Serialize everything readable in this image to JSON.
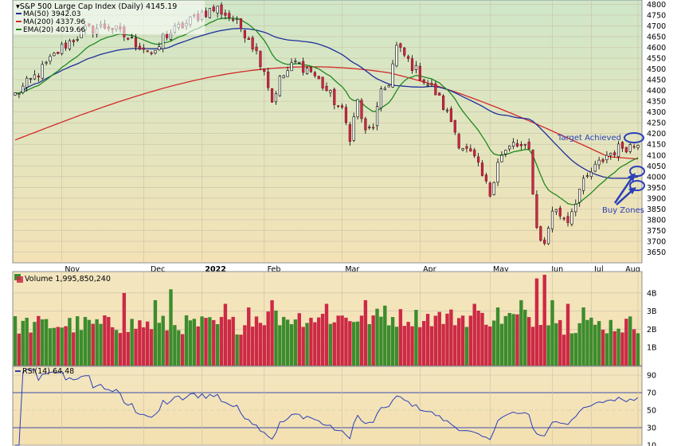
{
  "chart_data": {
    "type": "candlestick",
    "title": "S&P 500 Large Cap Index (Daily)",
    "last_value": "4145.19",
    "ylim": [
      3600,
      4820
    ],
    "y_ticks": [
      3650,
      3700,
      3750,
      3800,
      3850,
      3900,
      3950,
      4000,
      4050,
      4100,
      4150,
      4200,
      4250,
      4300,
      4350,
      4400,
      4450,
      4500,
      4550,
      4600,
      4650,
      4700,
      4750,
      4800
    ],
    "x_labels": [
      "Nov",
      "Dec",
      "2022",
      "Feb",
      "Mar",
      "Apr",
      "May",
      "Jun",
      "Jul",
      "Aug"
    ],
    "grid": true,
    "legend_placement": "top-left",
    "overlays": [
      {
        "name": "MA(50)",
        "value": "3942.03",
        "color": "#1f2f9c"
      },
      {
        "name": "MA(200)",
        "value": "4337.96",
        "color": "#d22a2a"
      },
      {
        "name": "EMA(20)",
        "value": "4019.66",
        "color": "#1f8a1f"
      }
    ],
    "price_anchors": [
      [
        0,
        4380
      ],
      [
        6,
        4480
      ],
      [
        12,
        4600
      ],
      [
        18,
        4680
      ],
      [
        24,
        4700
      ],
      [
        30,
        4630
      ],
      [
        33,
        4600
      ],
      [
        36,
        4560
      ],
      [
        38,
        4650
      ],
      [
        44,
        4710
      ],
      [
        48,
        4760
      ],
      [
        52,
        4780
      ],
      [
        56,
        4730
      ],
      [
        60,
        4650
      ],
      [
        64,
        4500
      ],
      [
        66,
        4350
      ],
      [
        68,
        4450
      ],
      [
        72,
        4530
      ],
      [
        76,
        4490
      ],
      [
        80,
        4400
      ],
      [
        84,
        4300
      ],
      [
        86,
        4190
      ],
      [
        88,
        4350
      ],
      [
        90,
        4200
      ],
      [
        92,
        4240
      ],
      [
        94,
        4380
      ],
      [
        96,
        4440
      ],
      [
        98,
        4600
      ],
      [
        100,
        4560
      ],
      [
        104,
        4470
      ],
      [
        108,
        4390
      ],
      [
        112,
        4260
      ],
      [
        114,
        4160
      ],
      [
        118,
        4080
      ],
      [
        122,
        3920
      ],
      [
        124,
        4080
      ],
      [
        128,
        4150
      ],
      [
        132,
        4120
      ],
      [
        134,
        3760
      ],
      [
        136,
        3680
      ],
      [
        138,
        3850
      ],
      [
        142,
        3800
      ],
      [
        145,
        3940
      ],
      [
        148,
        4020
      ],
      [
        152,
        4100
      ],
      [
        156,
        4140
      ],
      [
        160,
        4145.19
      ]
    ],
    "annotations": {
      "target_label": "Target Achieved",
      "buy_label": "Buy Zones"
    },
    "volume": {
      "label": "Volume",
      "value": "1,995,850,240",
      "ylim": [
        0,
        5
      ],
      "y_ticks": [
        "1B",
        "2B",
        "3B",
        "4B"
      ]
    },
    "rsi": {
      "label": "RSI(14)",
      "value": "64.48",
      "ylim": [
        10,
        100
      ],
      "y_ticks": [
        10,
        30,
        50,
        70,
        90
      ],
      "overbought": 70,
      "oversold": 30
    },
    "colors": {
      "up": "#3c8c2e",
      "down": "#cc2a46",
      "bg_top": "#cfe7c8",
      "bg_bottom": "#f4e2b6",
      "grid": "#c9c0a6",
      "annotation": "#2a3fb8"
    }
  }
}
